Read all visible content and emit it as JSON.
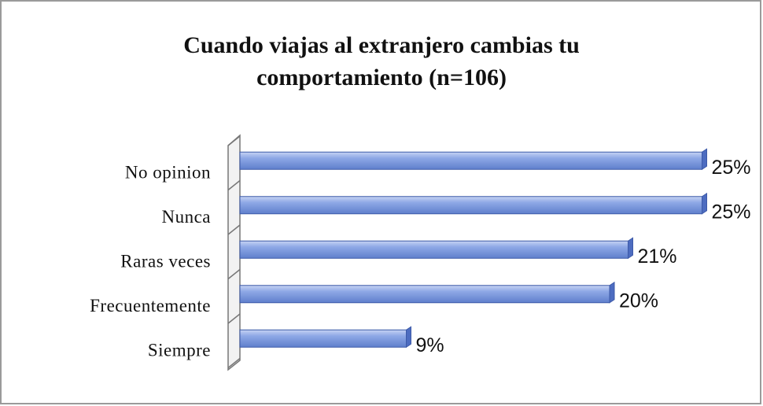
{
  "chart_data": {
    "type": "bar",
    "orientation": "horizontal",
    "title": [
      "Cuando viajas al extranjero cambias tu",
      "comportamiento (n=106)"
    ],
    "categories": [
      "No opinion",
      "Nunca",
      "Raras veces",
      "Frecuentemente",
      "Siempre"
    ],
    "values": [
      25,
      25,
      21,
      20,
      9
    ],
    "value_labels": [
      "25%",
      "25%",
      "21%",
      "20%",
      "9%"
    ],
    "color": "#7f9be0"
  }
}
